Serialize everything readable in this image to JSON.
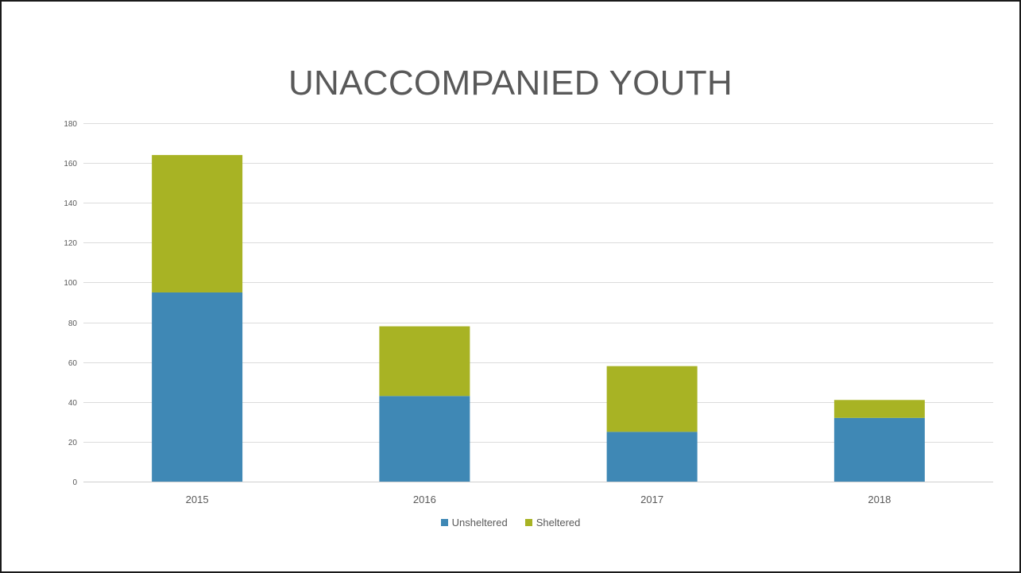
{
  "chart_data": {
    "type": "bar",
    "stacked": true,
    "title": "UNACCOMPANIED YOUTH",
    "categories": [
      "2015",
      "2016",
      "2017",
      "2018"
    ],
    "series": [
      {
        "name": "Unsheltered",
        "values": [
          95,
          43,
          25,
          32
        ],
        "color": "#3f88b5"
      },
      {
        "name": "Sheltered",
        "values": [
          69,
          35,
          33,
          9
        ],
        "color": "#a8b324"
      }
    ],
    "ylim": [
      0,
      180
    ],
    "yticks": [
      0,
      20,
      40,
      60,
      80,
      100,
      120,
      140,
      160,
      180
    ],
    "grid": true,
    "legend": "bottom",
    "xlabel": "",
    "ylabel": ""
  }
}
